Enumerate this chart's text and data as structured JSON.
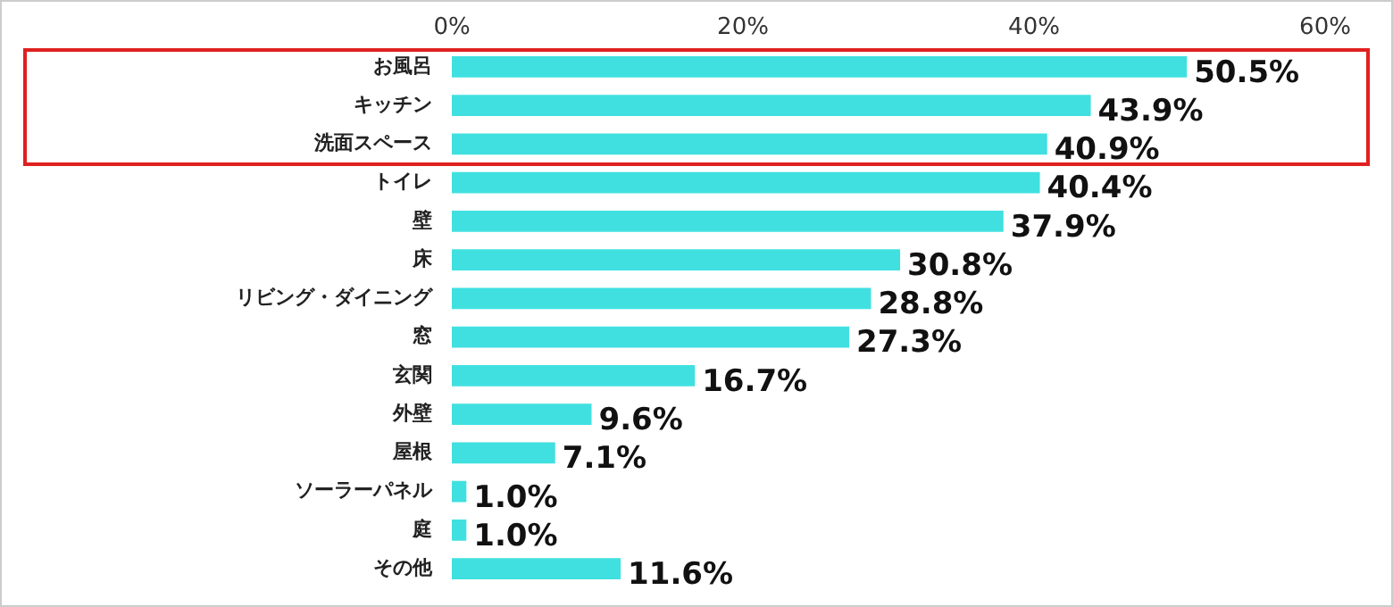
{
  "chart_data": {
    "type": "bar",
    "orientation": "horizontal",
    "categories": [
      "お風呂",
      "キッチン",
      "洗面スペース",
      "トイレ",
      "壁",
      "床",
      "リビング・ダイニング",
      "窓",
      "玄関",
      "外壁",
      "屋根",
      "ソーラーパネル",
      "庭",
      "その他"
    ],
    "values": [
      50.5,
      43.9,
      40.9,
      40.4,
      37.9,
      30.8,
      28.8,
      27.3,
      16.7,
      9.6,
      7.1,
      1.0,
      1.0,
      11.6
    ],
    "value_labels": [
      "50.5%",
      "43.9%",
      "40.9%",
      "40.4%",
      "37.9%",
      "30.8%",
      "28.8%",
      "27.3%",
      "16.7%",
      "9.6%",
      "7.1%",
      "1.0%",
      "1.0%",
      "11.6%"
    ],
    "color": "#40e0e0",
    "xlim": [
      0,
      60
    ],
    "xticks": [
      {
        "value": 0,
        "label": "0%"
      },
      {
        "value": 20,
        "label": "20%"
      },
      {
        "value": 40,
        "label": "40%"
      },
      {
        "value": 60,
        "label": "60%"
      }
    ],
    "grid": false,
    "legend": false
  }
}
